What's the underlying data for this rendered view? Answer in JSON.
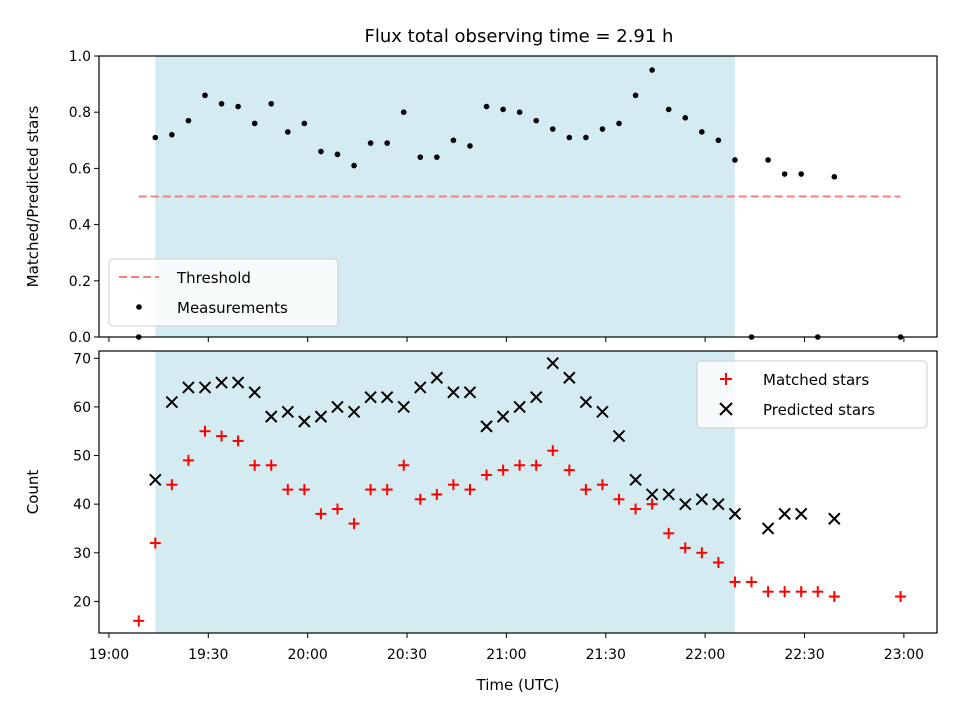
{
  "title": "Flux total observing time = 2.91 h",
  "colors": {
    "observing_span": "#d4ebf1",
    "threshold": "#f08080",
    "measurements": "#000000",
    "matched": "#ff0000",
    "predicted": "#000000"
  },
  "chart_data": [
    {
      "type": "scatter",
      "panel": "top",
      "ylabel": "Matched/Predicted stars",
      "xlim": [
        "18:57",
        "23:10"
      ],
      "ylim": [
        0,
        1
      ],
      "yticks": [
        "0.0",
        "0.2",
        "0.4",
        "0.6",
        "0.8",
        "1.0"
      ],
      "shaded_span": [
        "19:14",
        "22:09"
      ],
      "threshold": {
        "label": "Threshold",
        "y": 0.5,
        "x_range": [
          "19:09",
          "22:59"
        ]
      },
      "legend": {
        "position": "lower-left",
        "entries": [
          "Threshold",
          "Measurements"
        ]
      },
      "series": [
        {
          "name": "Measurements",
          "marker": "dot",
          "x": [
            "19:09",
            "19:14",
            "19:19",
            "19:24",
            "19:29",
            "19:34",
            "19:39",
            "19:44",
            "19:49",
            "19:54",
            "19:59",
            "20:04",
            "20:09",
            "20:14",
            "20:19",
            "20:24",
            "20:29",
            "20:34",
            "20:39",
            "20:44",
            "20:49",
            "20:54",
            "20:59",
            "21:04",
            "21:09",
            "21:14",
            "21:19",
            "21:24",
            "21:29",
            "21:34",
            "21:39",
            "21:44",
            "21:49",
            "21:54",
            "21:59",
            "22:04",
            "22:09",
            "22:14",
            "22:19",
            "22:24",
            "22:29",
            "22:34",
            "22:39",
            "22:59"
          ],
          "values": [
            0.0,
            0.71,
            0.72,
            0.77,
            0.86,
            0.83,
            0.82,
            0.76,
            0.83,
            0.73,
            0.76,
            0.66,
            0.65,
            0.61,
            0.69,
            0.69,
            0.8,
            0.64,
            0.64,
            0.7,
            0.68,
            0.82,
            0.81,
            0.8,
            0.77,
            0.74,
            0.71,
            0.71,
            0.74,
            0.76,
            0.86,
            0.95,
            0.81,
            0.78,
            0.73,
            0.7,
            0.63,
            0.0,
            0.63,
            0.58,
            0.58,
            0.0,
            0.57,
            0.0
          ]
        }
      ]
    },
    {
      "type": "scatter",
      "panel": "bottom",
      "xlabel": "Time (UTC)",
      "ylabel": "Count",
      "xlim": [
        "18:57",
        "23:10"
      ],
      "ylim": [
        13.5,
        71.5
      ],
      "xticks": [
        "19:00",
        "19:30",
        "20:00",
        "20:30",
        "21:00",
        "21:30",
        "22:00",
        "22:30",
        "23:00"
      ],
      "yticks": [
        "20",
        "30",
        "40",
        "50",
        "60",
        "70"
      ],
      "shaded_span": [
        "19:14",
        "22:09"
      ],
      "legend": {
        "position": "upper-right",
        "entries": [
          "Matched stars",
          "Predicted stars"
        ]
      },
      "series": [
        {
          "name": "Matched stars",
          "marker": "plus",
          "x": [
            "19:09",
            "19:14",
            "19:19",
            "19:24",
            "19:29",
            "19:34",
            "19:39",
            "19:44",
            "19:49",
            "19:54",
            "19:59",
            "20:04",
            "20:09",
            "20:14",
            "20:19",
            "20:24",
            "20:29",
            "20:34",
            "20:39",
            "20:44",
            "20:49",
            "20:54",
            "20:59",
            "21:04",
            "21:09",
            "21:14",
            "21:19",
            "21:24",
            "21:29",
            "21:34",
            "21:39",
            "21:44",
            "21:49",
            "21:54",
            "21:59",
            "22:04",
            "22:09",
            "22:14",
            "22:19",
            "22:24",
            "22:29",
            "22:34",
            "22:39",
            "22:59"
          ],
          "values": [
            16,
            32,
            44,
            49,
            55,
            54,
            53,
            48,
            48,
            43,
            43,
            38,
            39,
            36,
            43,
            43,
            48,
            41,
            42,
            44,
            43,
            46,
            47,
            48,
            48,
            51,
            47,
            43,
            44,
            41,
            39,
            40,
            34,
            31,
            30,
            28,
            24,
            24,
            22,
            22,
            22,
            22,
            21,
            21
          ]
        },
        {
          "name": "Predicted stars",
          "marker": "x",
          "x": [
            "19:14",
            "19:19",
            "19:24",
            "19:29",
            "19:34",
            "19:39",
            "19:44",
            "19:49",
            "19:54",
            "19:59",
            "20:04",
            "20:09",
            "20:14",
            "20:19",
            "20:24",
            "20:29",
            "20:34",
            "20:39",
            "20:44",
            "20:49",
            "20:54",
            "20:59",
            "21:04",
            "21:09",
            "21:14",
            "21:19",
            "21:24",
            "21:29",
            "21:34",
            "21:39",
            "21:44",
            "21:49",
            "21:54",
            "21:59",
            "22:04",
            "22:09",
            "22:19",
            "22:24",
            "22:29",
            "22:39"
          ],
          "values": [
            45,
            61,
            64,
            64,
            65,
            65,
            63,
            58,
            59,
            57,
            58,
            60,
            59,
            62,
            62,
            60,
            64,
            66,
            63,
            63,
            56,
            58,
            60,
            62,
            69,
            66,
            61,
            59,
            54,
            45,
            42,
            42,
            40,
            41,
            40,
            38,
            35,
            38,
            38,
            37
          ]
        }
      ]
    }
  ]
}
